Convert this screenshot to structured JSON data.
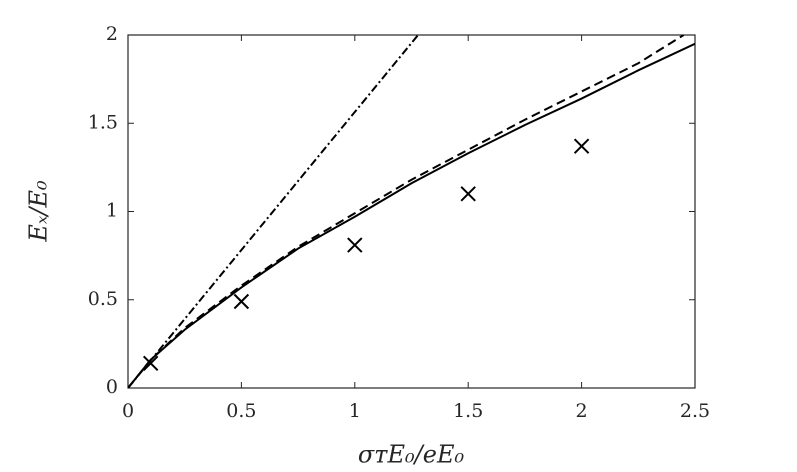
{
  "chart_data": {
    "type": "line",
    "x_label": "σᴛE₀/eE₀",
    "y_label": "Eₓ/E₀",
    "xlim": [
      0,
      2.5
    ],
    "xticks": [
      0,
      0.5,
      1,
      1.5,
      2,
      2.5
    ],
    "ylim": [
      0,
      2
    ],
    "yticks": [
      0,
      0.5,
      1,
      1.5,
      2
    ],
    "grid": false,
    "series": [
      {
        "color": "#000000",
        "style": "dashdot",
        "x": [
          0,
          1.279
        ],
        "values": [
          0,
          2
        ]
      },
      {
        "color": "#000000",
        "style": "dashed",
        "x": [
          0,
          0.1,
          0.25,
          0.5,
          0.75,
          1,
          1.25,
          1.5,
          1.75,
          2,
          2.25,
          2.45
        ],
        "values": [
          0,
          0.16,
          0.34,
          0.58,
          0.8,
          0.99,
          1.18,
          1.35,
          1.52,
          1.68,
          1.84,
          2
        ]
      },
      {
        "color": "#000000",
        "style": "solid",
        "x": [
          0,
          0.1,
          0.25,
          0.5,
          0.75,
          1,
          1.25,
          1.5,
          1.75,
          2,
          2.25,
          2.5
        ],
        "values": [
          0,
          0.16,
          0.33,
          0.57,
          0.79,
          0.97,
          1.16,
          1.33,
          1.49,
          1.64,
          1.8,
          1.95
        ]
      },
      {
        "color": "#000000",
        "style": "markers",
        "marker": "x",
        "x": [
          0.1,
          0.5,
          1,
          1.5,
          2
        ],
        "values": [
          0.14,
          0.49,
          0.81,
          1.1,
          1.37
        ]
      }
    ]
  }
}
